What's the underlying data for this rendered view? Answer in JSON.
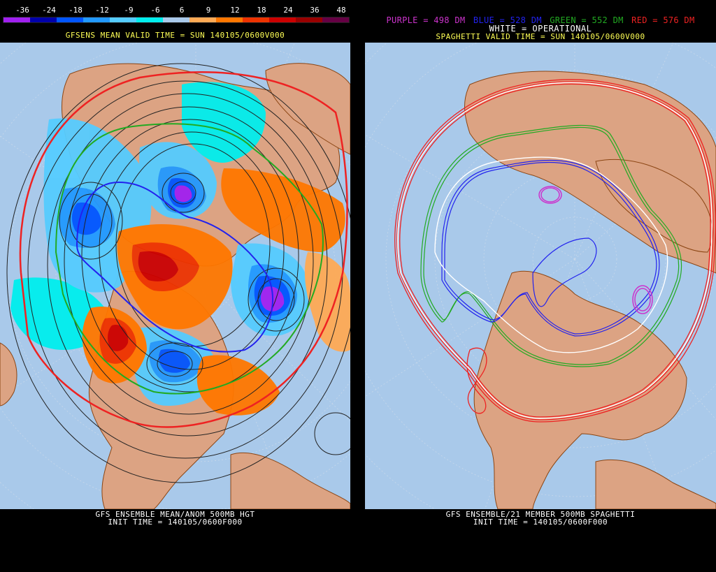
{
  "left_panel": {
    "colorbar": {
      "tick_labels": [
        "-36",
        "-24",
        "-18",
        "-12",
        "-9",
        "-6",
        "6",
        "9",
        "12",
        "18",
        "24",
        "36",
        "48"
      ],
      "colors": [
        "#a020f0",
        "#0000aa",
        "#0055ff",
        "#2299ff",
        "#55ccff",
        "#00eeee",
        "#a9c9ea",
        "#ffaa55",
        "#ff7700",
        "#ee3300",
        "#cc0000",
        "#990000",
        "#660044"
      ]
    },
    "valid_time": "GFSENS MEAN VALID TIME = SUN 140105/0600V000",
    "footer_line1": "GFS ENSEMBLE MEAN/ANOM 500MB HGT",
    "footer_line2": "INIT TIME = 140105/0600F000"
  },
  "right_panel": {
    "legend": [
      {
        "text": "PURPLE = 498 DM",
        "color": "#cc33cc"
      },
      {
        "text": "BLUE = 528 DM",
        "color": "#2222ee"
      },
      {
        "text": "GREEN = 552 DM",
        "color": "#22aa22"
      },
      {
        "text": "RED = 576 DM",
        "color": "#ee2222"
      }
    ],
    "white_label": "WHITE = OPERATIONAL",
    "valid_time": "SPAGHETTI VALID TIME = SUN 140105/0600V000",
    "footer_line1": "GFS ENSEMBLE/21 MEMBER 500MB SPAGHETTI",
    "footer_line2": "INIT TIME = 140105/0600F000"
  },
  "colors": {
    "ocean": "#a9c9ea",
    "land": "#dca383",
    "coast": "#8b4513"
  }
}
